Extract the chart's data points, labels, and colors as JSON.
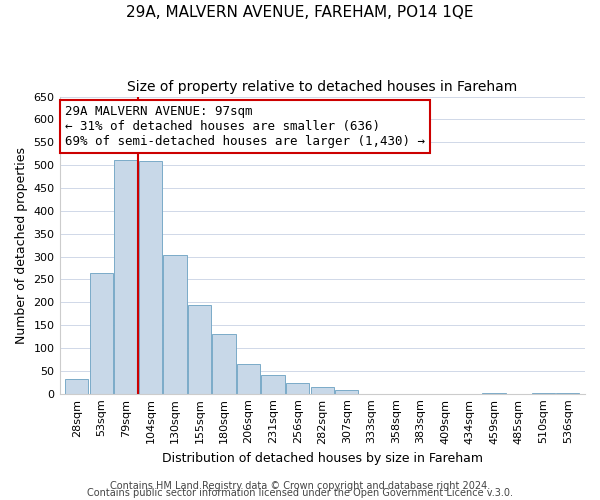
{
  "title": "29A, MALVERN AVENUE, FAREHAM, PO14 1QE",
  "subtitle": "Size of property relative to detached houses in Fareham",
  "xlabel": "Distribution of detached houses by size in Fareham",
  "ylabel": "Number of detached properties",
  "categories": [
    "28sqm",
    "53sqm",
    "79sqm",
    "104sqm",
    "130sqm",
    "155sqm",
    "180sqm",
    "206sqm",
    "231sqm",
    "256sqm",
    "282sqm",
    "307sqm",
    "333sqm",
    "358sqm",
    "383sqm",
    "409sqm",
    "434sqm",
    "459sqm",
    "485sqm",
    "510sqm",
    "536sqm"
  ],
  "values": [
    33,
    263,
    512,
    510,
    303,
    195,
    130,
    64,
    40,
    23,
    15,
    8,
    0,
    0,
    0,
    0,
    0,
    2,
    0,
    2,
    2
  ],
  "bar_color": "#c8d8e8",
  "bar_edge_color": "#7aaac8",
  "vline_x": 3.0,
  "vline_color": "#cc0000",
  "annotation_line1": "29A MALVERN AVENUE: 97sqm",
  "annotation_line2": "← 31% of detached houses are smaller (636)",
  "annotation_line3": "69% of semi-detached houses are larger (1,430) →",
  "annotation_box_edge": "#cc0000",
  "ylim": [
    0,
    650
  ],
  "yticks": [
    0,
    50,
    100,
    150,
    200,
    250,
    300,
    350,
    400,
    450,
    500,
    550,
    600,
    650
  ],
  "footer1": "Contains HM Land Registry data © Crown copyright and database right 2024.",
  "footer2": "Contains public sector information licensed under the Open Government Licence v.3.0.",
  "title_fontsize": 11,
  "subtitle_fontsize": 10,
  "axis_label_fontsize": 9,
  "tick_fontsize": 8,
  "annotation_fontsize": 9,
  "footer_fontsize": 7,
  "background_color": "#ffffff",
  "grid_color": "#d0d8e8"
}
